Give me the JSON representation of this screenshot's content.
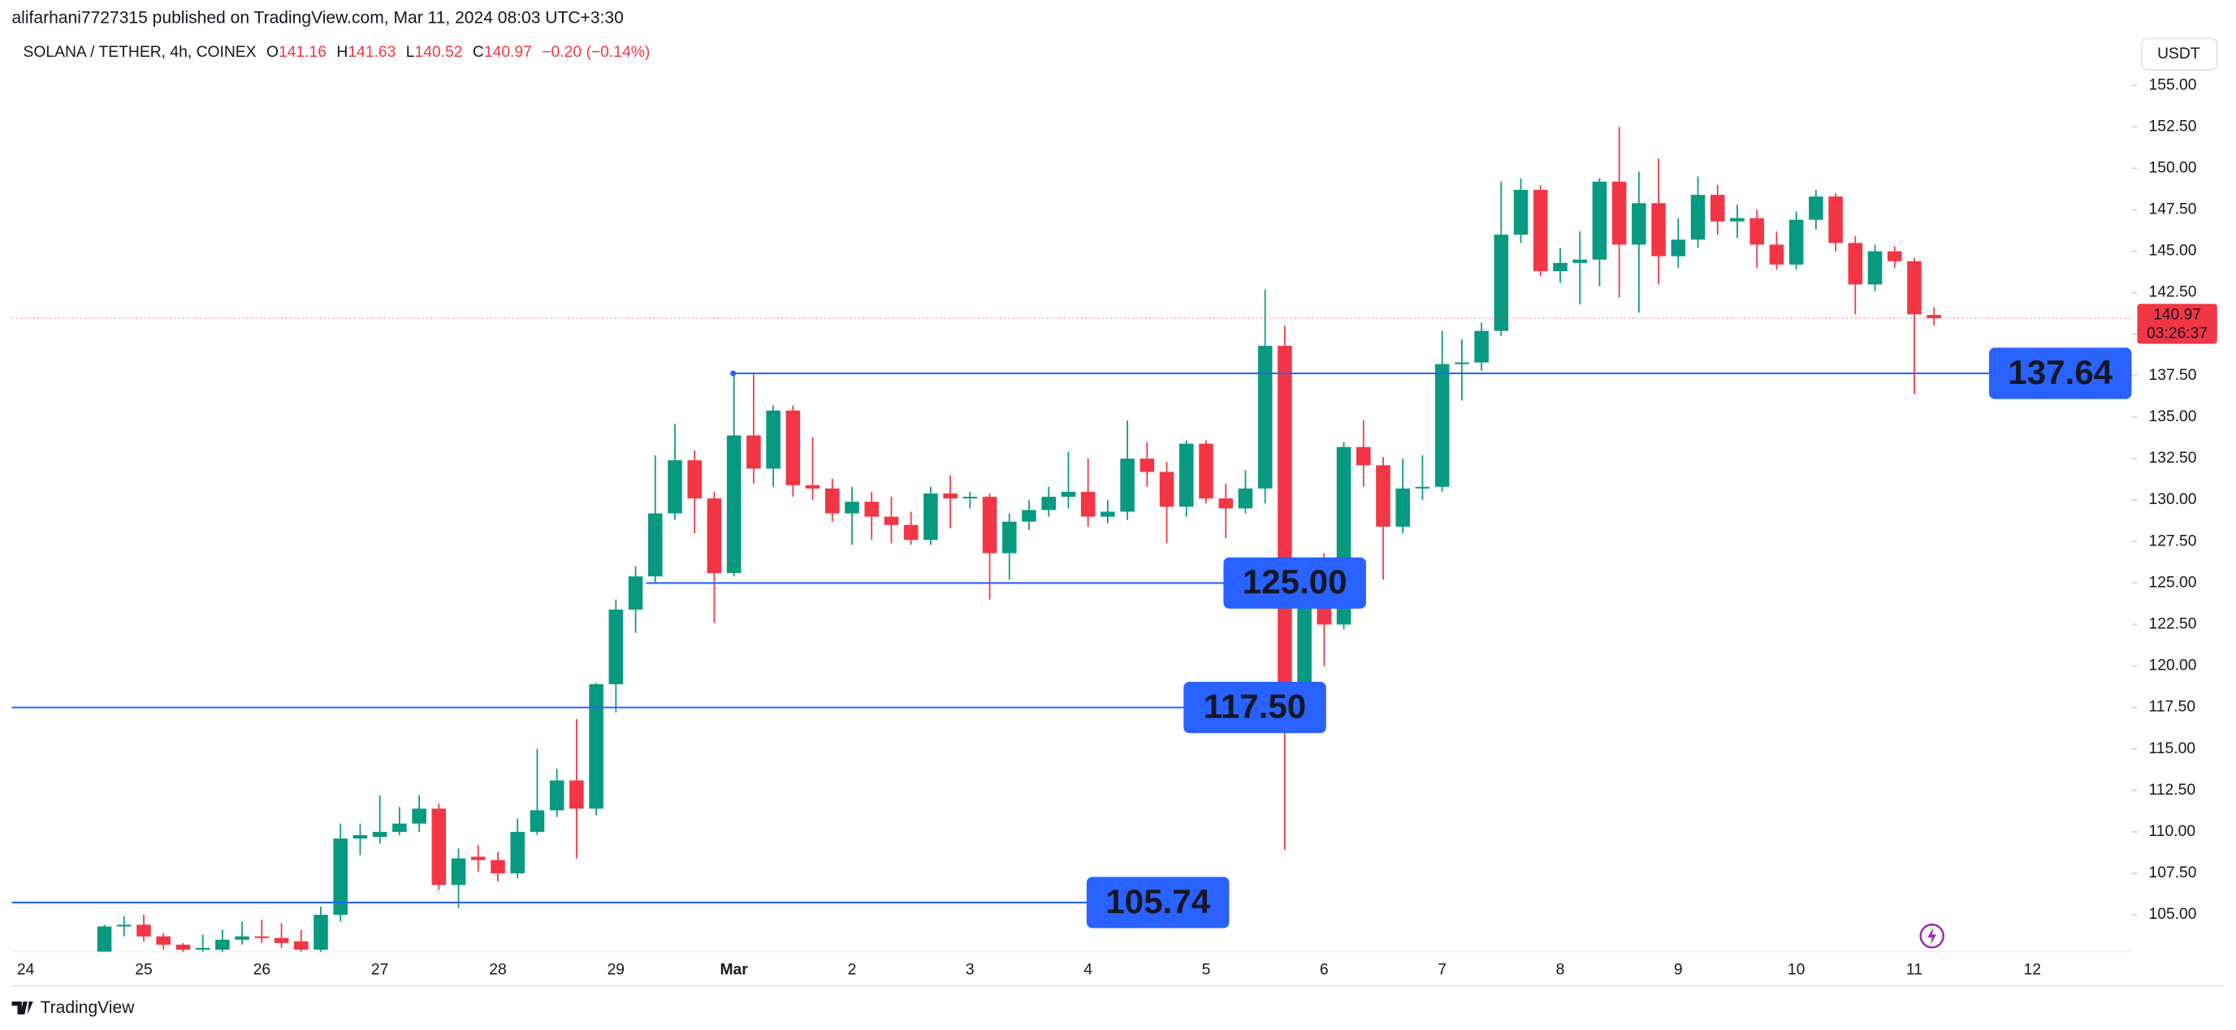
{
  "chart_data": {
    "type": "candlestick",
    "publisher": "alifarhani7727315 published on TradingView.com, Mar 11, 2024 08:03 UTC+3:30",
    "symbol": "SOLANA / TETHER, 4h, COINEX",
    "ohlc_labels": [
      "O",
      "H",
      "L",
      "C"
    ],
    "change": "−0.20 (−0.14%)",
    "currency": "USDT",
    "countdown": "03:26:37",
    "watermark": "TradingView",
    "categories": [
      "24",
      null,
      null,
      null,
      null,
      null,
      "25",
      null,
      null,
      null,
      null,
      null,
      "26",
      null,
      null,
      null,
      null,
      null,
      "27",
      null,
      null,
      null,
      null,
      null,
      "28",
      null,
      null,
      null,
      null,
      null,
      "29",
      null,
      null,
      null,
      null,
      null,
      "Mar",
      null,
      null,
      null,
      null,
      null,
      "2",
      null,
      null,
      null,
      null,
      null,
      "3",
      null,
      null,
      null,
      null,
      null,
      "4",
      null,
      null,
      null,
      null,
      null,
      "5",
      null,
      null,
      null,
      null,
      null,
      "6",
      null,
      null,
      null,
      null,
      null,
      "7",
      null,
      null,
      null,
      null,
      null,
      "8",
      null,
      null,
      null,
      null,
      null,
      "9",
      null,
      null,
      null,
      null,
      null,
      "10",
      null,
      null,
      null,
      null,
      null,
      "11",
      null,
      null,
      null,
      null,
      null,
      "12"
    ],
    "open": [
      null,
      null,
      null,
      null,
      102.6,
      104.3,
      104.4,
      103.7,
      103.2,
      102.9,
      102.9,
      103.5,
      103.7,
      103.6,
      103.4,
      102.9,
      105.0,
      109.6,
      109.7,
      110.0,
      110.5,
      111.4,
      106.8,
      108.5,
      108.3,
      107.5,
      110.0,
      111.3,
      113.1,
      111.4,
      118.9,
      123.4,
      125.4,
      129.2,
      132.4,
      130.1,
      125.6,
      133.9,
      131.9,
      135.4,
      130.9,
      130.7,
      129.2,
      129.9,
      129.0,
      128.5,
      127.6,
      130.4,
      130.1,
      130.2,
      126.8,
      128.7,
      129.4,
      130.2,
      130.5,
      129.0,
      129.3,
      132.5,
      131.7,
      129.6,
      133.4,
      130.1,
      129.5,
      130.7,
      139.3,
      118.6,
      125.5,
      122.5,
      133.2,
      132.1,
      128.4,
      130.7,
      130.8,
      138.2,
      138.3,
      140.2,
      146.0,
      148.7,
      143.8,
      144.3,
      144.5,
      149.2,
      145.4,
      147.9,
      144.7,
      145.7,
      148.4,
      146.8,
      147.0,
      145.4,
      144.2,
      146.9,
      148.3,
      145.5,
      143.0,
      145.0,
      144.4,
      141.16,
      null,
      null,
      null,
      null,
      null
    ],
    "high": [
      null,
      null,
      null,
      null,
      104.4,
      104.9,
      105.0,
      103.9,
      103.3,
      103.8,
      104.1,
      104.6,
      104.7,
      104.5,
      104.1,
      105.5,
      110.5,
      110.5,
      112.2,
      111.5,
      112.2,
      111.7,
      109.0,
      109.2,
      108.8,
      110.8,
      115.0,
      113.8,
      116.8,
      119.0,
      124.0,
      126.0,
      132.7,
      134.6,
      133.0,
      130.5,
      137.6,
      137.6,
      135.7,
      135.7,
      133.8,
      131.3,
      130.8,
      130.5,
      130.2,
      129.3,
      130.8,
      131.5,
      130.5,
      130.4,
      129.2,
      130.0,
      130.8,
      132.9,
      132.5,
      130.0,
      134.8,
      133.5,
      132.3,
      133.6,
      133.6,
      131.0,
      131.8,
      142.7,
      140.5,
      126.5,
      126.8,
      133.5,
      134.8,
      132.6,
      132.5,
      132.7,
      140.2,
      139.7,
      140.7,
      149.2,
      149.4,
      149.0,
      145.2,
      146.2,
      149.4,
      152.5,
      149.8,
      150.6,
      147.0,
      149.5,
      149.0,
      147.8,
      147.5,
      146.2,
      147.4,
      148.7,
      148.5,
      145.9,
      145.4,
      145.3,
      144.6,
      141.63,
      null,
      null,
      null,
      null,
      null
    ],
    "low": [
      null,
      null,
      null,
      null,
      102.4,
      103.7,
      103.4,
      102.9,
      102.7,
      102.7,
      102.7,
      103.2,
      103.3,
      103.0,
      102.6,
      102.5,
      104.6,
      108.6,
      109.3,
      109.8,
      110.0,
      106.5,
      105.4,
      107.6,
      107.0,
      107.2,
      109.8,
      110.9,
      108.4,
      111.0,
      117.2,
      122.0,
      125.0,
      128.8,
      128.0,
      122.6,
      125.4,
      131.0,
      130.8,
      130.2,
      130.0,
      128.7,
      127.3,
      127.6,
      127.4,
      127.3,
      127.3,
      128.3,
      129.5,
      124.0,
      125.2,
      128.2,
      129.0,
      129.5,
      128.4,
      128.6,
      128.8,
      130.8,
      127.4,
      129.0,
      129.8,
      127.7,
      129.2,
      129.8,
      108.9,
      118.0,
      120.0,
      122.2,
      130.8,
      125.2,
      128.0,
      130.0,
      130.5,
      136.0,
      137.8,
      139.9,
      145.5,
      143.5,
      143.1,
      141.8,
      142.9,
      142.2,
      141.3,
      143.0,
      144.0,
      145.2,
      146.0,
      145.8,
      144.0,
      143.9,
      143.9,
      146.3,
      145.0,
      141.2,
      142.6,
      144.0,
      136.4,
      140.52,
      null,
      null,
      null,
      null,
      null
    ],
    "close": [
      null,
      null,
      null,
      null,
      104.3,
      104.4,
      103.7,
      103.2,
      102.9,
      103.0,
      103.5,
      103.7,
      103.6,
      103.3,
      102.9,
      105.0,
      109.6,
      109.8,
      110.0,
      110.5,
      111.4,
      106.8,
      108.4,
      108.3,
      107.5,
      110.0,
      111.3,
      113.1,
      111.4,
      118.9,
      123.4,
      125.4,
      129.2,
      132.4,
      130.1,
      125.6,
      133.9,
      131.9,
      135.4,
      130.9,
      130.7,
      129.2,
      129.9,
      129.0,
      128.5,
      127.6,
      130.4,
      130.1,
      130.2,
      126.8,
      128.7,
      129.4,
      130.2,
      130.5,
      129.0,
      129.3,
      132.5,
      131.7,
      129.6,
      133.4,
      130.1,
      129.5,
      130.7,
      139.3,
      118.6,
      125.5,
      122.5,
      133.2,
      132.1,
      128.4,
      130.7,
      130.8,
      138.2,
      138.3,
      140.2,
      146.0,
      148.7,
      143.8,
      144.3,
      144.5,
      149.2,
      145.4,
      147.9,
      144.7,
      145.7,
      148.4,
      146.8,
      147.0,
      145.4,
      144.2,
      146.9,
      148.3,
      145.5,
      143.0,
      145.0,
      144.4,
      141.2,
      140.97,
      null,
      null,
      null,
      null,
      null
    ],
    "up_color": "#089981",
    "down_color": "#f23645",
    "level_color": "#2962ff",
    "levels": [
      137.64,
      {
        "value": 125.0,
        "label": "125.00"
      },
      {
        "value": 117.5,
        "label": "117.50"
      },
      105.74
    ],
    "ylim": [
      102.78,
      158.0
    ],
    "yticks": [
      {
        "value": 105,
        "label": "105.00"
      },
      {
        "value": 107.5,
        "label": "107.50"
      },
      {
        "value": 110,
        "label": "110.00"
      },
      {
        "value": 112.5,
        "label": "112.50"
      },
      {
        "value": 115,
        "label": "115.00"
      },
      {
        "value": 117.5,
        "label": "117.50"
      },
      {
        "value": 120,
        "label": "120.00"
      },
      {
        "value": 122.5,
        "label": "122.50"
      },
      {
        "value": 125,
        "label": "125.00"
      },
      {
        "value": 127.5,
        "label": "127.50"
      },
      {
        "value": 130,
        "label": "130.00"
      },
      {
        "value": 132.5,
        "label": "132.50"
      },
      {
        "value": 135,
        "label": "135.00"
      },
      {
        "value": 137.5,
        "label": "137.50"
      },
      {
        "value": 140,
        "label": "140.00"
      },
      {
        "value": 142.5,
        "label": "142.50"
      },
      {
        "value": 145,
        "label": "145.00"
      },
      {
        "value": 147.5,
        "label": "147.50"
      },
      {
        "value": 150,
        "label": "150.00"
      },
      {
        "value": 152.5,
        "label": "152.50"
      },
      {
        "value": 155,
        "label": "155.00"
      }
    ],
    "grid": false
  }
}
